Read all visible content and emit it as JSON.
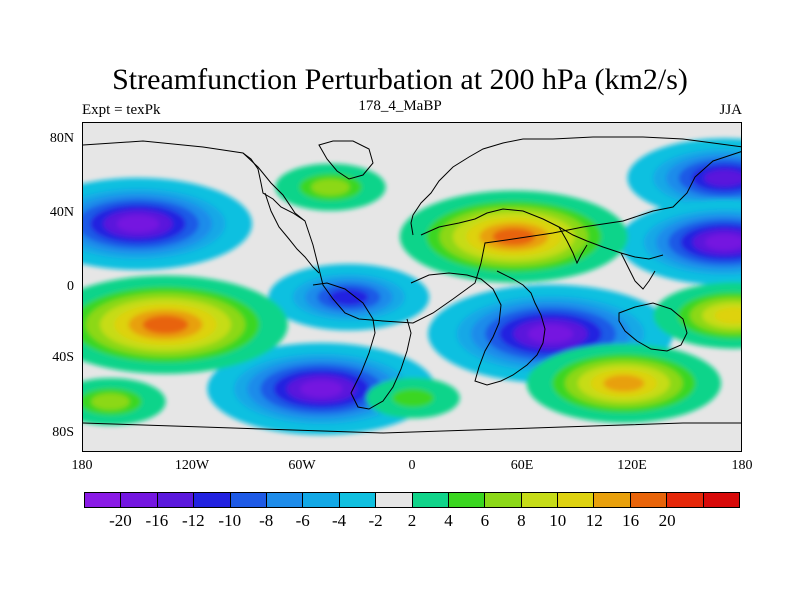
{
  "title": "Streamfunction Perturbation at 200 hPa (km2/s)",
  "subtitle_left": "Expt = texPk",
  "subtitle_center": "178_4_MaBP",
  "subtitle_right": "JJA",
  "lat_ticks": [
    "80N",
    "40N",
    "0",
    "40S",
    "80S"
  ],
  "lon_ticks": [
    "180",
    "120W",
    "60W",
    "0",
    "60E",
    "120E",
    "180"
  ],
  "colorbar": {
    "labels": [
      "-20",
      "-16",
      "-12",
      "-10",
      "-8",
      "-6",
      "-4",
      "-2",
      "2",
      "4",
      "6",
      "8",
      "10",
      "12",
      "16",
      "20"
    ],
    "colors": [
      "#8a1ae6",
      "#7416e0",
      "#5a18dc",
      "#2222e0",
      "#1e5ae6",
      "#1e8cea",
      "#12a8e6",
      "#10c0e0",
      "#e6e6e6",
      "#10d48a",
      "#3ad620",
      "#8cd818",
      "#c6dc18",
      "#ded210",
      "#e8a00c",
      "#e8640a",
      "#e6280a",
      "#d80a0a"
    ]
  },
  "chart_data": {
    "type": "heatmap",
    "title": "Streamfunction Perturbation at 200 hPa (km2/s)",
    "xlabel": "",
    "ylabel": "",
    "xlim": [
      -180,
      180
    ],
    "ylim": [
      -90,
      90
    ],
    "units": "km2/s",
    "levels": [
      -20,
      -16,
      -12,
      -10,
      -8,
      -6,
      -4,
      -2,
      2,
      4,
      6,
      8,
      10,
      12,
      16,
      20
    ],
    "features": [
      {
        "lon": -150,
        "lat": 35,
        "value": -20
      },
      {
        "lon": 170,
        "lat": 60,
        "value": -16
      },
      {
        "lon": 170,
        "lat": 25,
        "value": -18
      },
      {
        "lon": -35,
        "lat": -5,
        "value": -12
      },
      {
        "lon": 75,
        "lat": -25,
        "value": -22
      },
      {
        "lon": -50,
        "lat": -55,
        "value": -20
      },
      {
        "lon": 55,
        "lat": 28,
        "value": 20
      },
      {
        "lon": -135,
        "lat": -20,
        "value": 22
      },
      {
        "lon": 115,
        "lat": -52,
        "value": 16
      },
      {
        "lon": 175,
        "lat": -15,
        "value": 12
      },
      {
        "lon": -45,
        "lat": 55,
        "value": 6
      },
      {
        "lon": 0,
        "lat": -60,
        "value": 4
      },
      {
        "lon": -165,
        "lat": -62,
        "value": 6
      }
    ]
  }
}
